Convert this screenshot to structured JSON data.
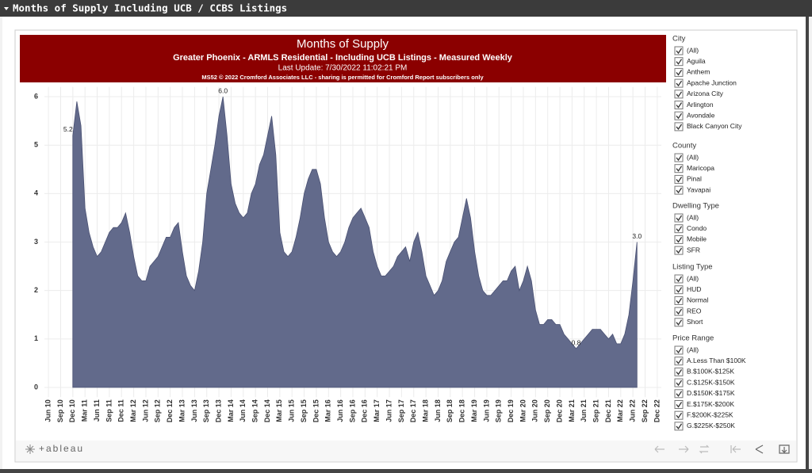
{
  "dashboard_title": "Months of Supply Including UCB / CCBS Listings",
  "header": {
    "title": "Months of Supply",
    "subtitle": "Greater Phoenix - ARMLS Residential - Including UCB Listings - Measured Weekly",
    "update": "Last Update: 7/30/2022 11:02:21 PM",
    "copyright": "MS52 © 2022 Cromford Associates LLC - sharing is permitted for Cromford Report subscribers only"
  },
  "chart_data": {
    "type": "area",
    "color": "#626a8b",
    "grid": true,
    "xlim": [
      "2010-05",
      "2023-01"
    ],
    "xticks": [
      {
        "value": "2010-06",
        "label": "Jun 10"
      },
      {
        "value": "2010-09",
        "label": "Sep 10"
      },
      {
        "value": "2010-12",
        "label": "Dec 10"
      },
      {
        "value": "2011-03",
        "label": "Mar 11"
      },
      {
        "value": "2011-06",
        "label": "Jun 11"
      },
      {
        "value": "2011-09",
        "label": "Sep 11"
      },
      {
        "value": "2011-12",
        "label": "Dec 11"
      },
      {
        "value": "2012-03",
        "label": "Mar 12"
      },
      {
        "value": "2012-06",
        "label": "Jun 12"
      },
      {
        "value": "2012-09",
        "label": "Sep 12"
      },
      {
        "value": "2012-12",
        "label": "Dec 12"
      },
      {
        "value": "2013-03",
        "label": "Mar 13"
      },
      {
        "value": "2013-06",
        "label": "Jun 13"
      },
      {
        "value": "2013-09",
        "label": "Sep 13"
      },
      {
        "value": "2013-12",
        "label": "Dec 13"
      },
      {
        "value": "2014-03",
        "label": "Mar 14"
      },
      {
        "value": "2014-06",
        "label": "Jun 14"
      },
      {
        "value": "2014-09",
        "label": "Sep 14"
      },
      {
        "value": "2014-12",
        "label": "Dec 14"
      },
      {
        "value": "2015-03",
        "label": "Mar 15"
      },
      {
        "value": "2015-06",
        "label": "Jun 15"
      },
      {
        "value": "2015-09",
        "label": "Sep 15"
      },
      {
        "value": "2015-12",
        "label": "Dec 15"
      },
      {
        "value": "2016-03",
        "label": "Mar 16"
      },
      {
        "value": "2016-06",
        "label": "Jun 16"
      },
      {
        "value": "2016-09",
        "label": "Sep 16"
      },
      {
        "value": "2016-12",
        "label": "Dec 16"
      },
      {
        "value": "2017-03",
        "label": "Mar 17"
      },
      {
        "value": "2017-06",
        "label": "Jun 17"
      },
      {
        "value": "2017-09",
        "label": "Sep 17"
      },
      {
        "value": "2017-12",
        "label": "Dec 17"
      },
      {
        "value": "2018-03",
        "label": "Mar 18"
      },
      {
        "value": "2018-06",
        "label": "Jun 18"
      },
      {
        "value": "2018-09",
        "label": "Sep 18"
      },
      {
        "value": "2018-12",
        "label": "Dec 18"
      },
      {
        "value": "2019-03",
        "label": "Mar 19"
      },
      {
        "value": "2019-06",
        "label": "Jun 19"
      },
      {
        "value": "2019-09",
        "label": "Sep 19"
      },
      {
        "value": "2019-12",
        "label": "Dec 19"
      },
      {
        "value": "2020-03",
        "label": "Mar 20"
      },
      {
        "value": "2020-06",
        "label": "Jun 20"
      },
      {
        "value": "2020-09",
        "label": "Sep 20"
      },
      {
        "value": "2020-12",
        "label": "Dec 20"
      },
      {
        "value": "2021-03",
        "label": "Mar 21"
      },
      {
        "value": "2021-06",
        "label": "Jun 21"
      },
      {
        "value": "2021-09",
        "label": "Sep 21"
      },
      {
        "value": "2021-12",
        "label": "Dec 21"
      },
      {
        "value": "2022-03",
        "label": "Mar 22"
      },
      {
        "value": "2022-06",
        "label": "Jun 22"
      },
      {
        "value": "2022-09",
        "label": "Sep 22"
      },
      {
        "value": "2022-12",
        "label": "Dec 22"
      }
    ],
    "ylim": [
      -0.2,
      6.2
    ],
    "yticks": [
      0,
      1,
      2,
      3,
      4,
      5,
      6
    ],
    "x": [
      "2010-12",
      "2011-01",
      "2011-02",
      "2011-03",
      "2011-04",
      "2011-05",
      "2011-06",
      "2011-07",
      "2011-08",
      "2011-09",
      "2011-10",
      "2011-11",
      "2011-12",
      "2012-01",
      "2012-02",
      "2012-03",
      "2012-04",
      "2012-05",
      "2012-06",
      "2012-07",
      "2012-08",
      "2012-09",
      "2012-10",
      "2012-11",
      "2012-12",
      "2013-01",
      "2013-02",
      "2013-03",
      "2013-04",
      "2013-05",
      "2013-06",
      "2013-07",
      "2013-08",
      "2013-09",
      "2013-10",
      "2013-11",
      "2013-12",
      "2014-01",
      "2014-02",
      "2014-03",
      "2014-04",
      "2014-05",
      "2014-06",
      "2014-07",
      "2014-08",
      "2014-09",
      "2014-10",
      "2014-11",
      "2014-12",
      "2015-01",
      "2015-02",
      "2015-03",
      "2015-04",
      "2015-05",
      "2015-06",
      "2015-07",
      "2015-08",
      "2015-09",
      "2015-10",
      "2015-11",
      "2015-12",
      "2016-01",
      "2016-02",
      "2016-03",
      "2016-04",
      "2016-05",
      "2016-06",
      "2016-07",
      "2016-08",
      "2016-09",
      "2016-10",
      "2016-11",
      "2016-12",
      "2017-01",
      "2017-02",
      "2017-03",
      "2017-04",
      "2017-05",
      "2017-06",
      "2017-07",
      "2017-08",
      "2017-09",
      "2017-10",
      "2017-11",
      "2017-12",
      "2018-01",
      "2018-02",
      "2018-03",
      "2018-04",
      "2018-05",
      "2018-06",
      "2018-07",
      "2018-08",
      "2018-09",
      "2018-10",
      "2018-11",
      "2018-12",
      "2019-01",
      "2019-02",
      "2019-03",
      "2019-04",
      "2019-05",
      "2019-06",
      "2019-07",
      "2019-08",
      "2019-09",
      "2019-10",
      "2019-11",
      "2019-12",
      "2020-01",
      "2020-02",
      "2020-03",
      "2020-04",
      "2020-05",
      "2020-06",
      "2020-07",
      "2020-08",
      "2020-09",
      "2020-10",
      "2020-11",
      "2020-12",
      "2021-01",
      "2021-02",
      "2021-03",
      "2021-04",
      "2021-05",
      "2021-06",
      "2021-07",
      "2021-08",
      "2021-09",
      "2021-10",
      "2021-11",
      "2021-12",
      "2022-01",
      "2022-02",
      "2022-03",
      "2022-04",
      "2022-05",
      "2022-06",
      "2022-07"
    ],
    "values": [
      5.2,
      5.9,
      5.4,
      3.7,
      3.2,
      2.9,
      2.7,
      2.8,
      3.0,
      3.2,
      3.3,
      3.3,
      3.4,
      3.6,
      3.2,
      2.7,
      2.3,
      2.2,
      2.2,
      2.5,
      2.6,
      2.7,
      2.9,
      3.1,
      3.1,
      3.3,
      3.4,
      2.8,
      2.3,
      2.1,
      2.0,
      2.4,
      3.0,
      4.0,
      4.5,
      5.0,
      5.6,
      6.0,
      5.2,
      4.2,
      3.8,
      3.6,
      3.5,
      3.6,
      4.0,
      4.2,
      4.6,
      4.8,
      5.2,
      5.6,
      4.8,
      3.2,
      2.8,
      2.7,
      2.8,
      3.1,
      3.5,
      4.0,
      4.3,
      4.5,
      4.5,
      4.2,
      3.5,
      3.0,
      2.8,
      2.7,
      2.8,
      3.0,
      3.3,
      3.5,
      3.6,
      3.7,
      3.5,
      3.3,
      2.8,
      2.5,
      2.3,
      2.3,
      2.4,
      2.5,
      2.7,
      2.8,
      2.9,
      2.6,
      3.0,
      3.2,
      2.8,
      2.3,
      2.1,
      1.9,
      2.0,
      2.2,
      2.6,
      2.8,
      3.0,
      3.1,
      3.5,
      3.9,
      3.5,
      2.8,
      2.3,
      2.0,
      1.9,
      1.9,
      2.0,
      2.1,
      2.2,
      2.2,
      2.4,
      2.5,
      2.0,
      2.2,
      2.5,
      2.2,
      1.6,
      1.3,
      1.3,
      1.4,
      1.4,
      1.3,
      1.3,
      1.1,
      1.0,
      0.9,
      0.8,
      0.9,
      1.0,
      1.1,
      1.2,
      1.2,
      1.2,
      1.1,
      1.0,
      1.1,
      0.9,
      0.9,
      1.1,
      1.5,
      2.2,
      3.0
    ],
    "value_labels": [
      "5.2",
      null,
      null,
      null,
      null,
      null,
      null,
      null,
      null,
      null,
      null,
      null,
      null,
      null,
      null,
      null,
      null,
      null,
      null,
      null,
      null,
      null,
      null,
      null,
      null,
      null,
      null,
      null,
      null,
      null,
      null,
      null,
      null,
      null,
      null,
      null,
      null,
      "6.0",
      null,
      null,
      null,
      null,
      null,
      null,
      null,
      null,
      null,
      null,
      null,
      null,
      null,
      null,
      null,
      null,
      null,
      null,
      null,
      null,
      null,
      null,
      null,
      null,
      null,
      null,
      null,
      null,
      null,
      null,
      null,
      null,
      null,
      null,
      null,
      null,
      null,
      null,
      null,
      null,
      null,
      null,
      null,
      null,
      null,
      null,
      null,
      null,
      null,
      null,
      null,
      null,
      null,
      null,
      null,
      null,
      null,
      null,
      null,
      null,
      null,
      null,
      null,
      null,
      null,
      null,
      null,
      null,
      null,
      null,
      null,
      null,
      null,
      null,
      null,
      null,
      null,
      null,
      null,
      null,
      null,
      null,
      null,
      null,
      null,
      null,
      "0.8",
      null,
      null,
      null,
      null,
      null,
      null,
      null,
      null,
      null,
      null,
      null,
      null,
      null,
      null,
      "3.0"
    ]
  },
  "filters": [
    {
      "title": "City",
      "items": [
        "(All)",
        "Aguila",
        "Anthem",
        "Apache Junction",
        "Arizona City",
        "Arlington",
        "Avondale",
        "Black Canyon City"
      ]
    },
    {
      "title": "County",
      "items": [
        "(All)",
        "Maricopa",
        "Pinal",
        "Yavapai"
      ]
    },
    {
      "title": "Dwelling Type",
      "items": [
        "(All)",
        "Condo",
        "Mobile",
        "SFR"
      ]
    },
    {
      "title": "Listing Type",
      "items": [
        "(All)",
        "HUD",
        "Normal",
        "REO",
        "Short"
      ]
    },
    {
      "title": "Price Range",
      "items": [
        "(All)",
        "A.Less Than $100K",
        "B.$100K-$125K",
        "C.$125K-$150K",
        "D.$150K-$175K",
        "E.$175K-$200K",
        "F.$200K-$225K",
        "G.$225K-$250K"
      ]
    }
  ],
  "footer": {
    "logo": "+ableau"
  }
}
